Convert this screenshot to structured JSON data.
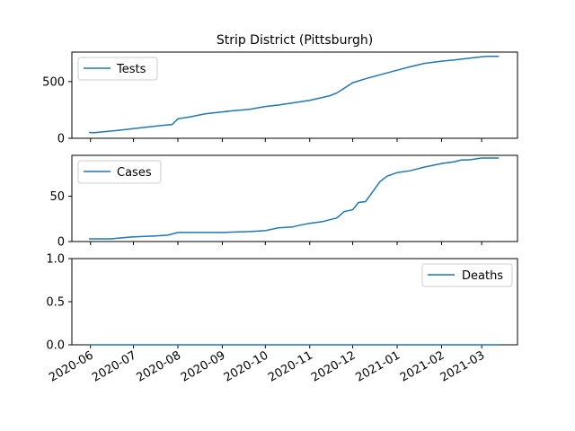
{
  "chart_data": {
    "type": "line",
    "title": "Strip District (Pittsburgh)",
    "color": "#1f77b4",
    "x_ticks": [
      "2020-06",
      "2020-07",
      "2020-08",
      "2020-09",
      "2020-10",
      "2020-11",
      "2020-12",
      "2021-01",
      "2021-02",
      "2021-03"
    ],
    "xlim": [
      "2020-05-19",
      "2021-03-26"
    ],
    "panels": [
      {
        "series": [
          {
            "name": "Tests",
            "x": [
              "2020-05-31",
              "2020-06-03",
              "2020-06-10",
              "2020-06-20",
              "2020-07-01",
              "2020-07-10",
              "2020-07-20",
              "2020-07-28",
              "2020-08-01",
              "2020-08-10",
              "2020-08-20",
              "2020-09-01",
              "2020-09-10",
              "2020-09-20",
              "2020-10-01",
              "2020-10-10",
              "2020-10-20",
              "2020-11-01",
              "2020-11-10",
              "2020-11-15",
              "2020-11-20",
              "2020-11-25",
              "2020-12-01",
              "2020-12-10",
              "2020-12-20",
              "2021-01-01",
              "2021-01-10",
              "2021-01-20",
              "2021-02-01",
              "2021-02-10",
              "2021-02-20",
              "2021-03-01",
              "2021-03-05",
              "2021-03-13"
            ],
            "y": [
              52,
              48,
              58,
              70,
              85,
              98,
              112,
              122,
              172,
              190,
              215,
              233,
              245,
              255,
              280,
              293,
              312,
              335,
              360,
              375,
              400,
              440,
              490,
              525,
              560,
              600,
              630,
              660,
              680,
              690,
              705,
              718,
              722,
              722
            ]
          }
        ],
        "ylim": [
          0,
          760
        ],
        "yticks": [
          0,
          500
        ],
        "legend_loc": "upper left"
      },
      {
        "series": [
          {
            "name": "Cases",
            "x": [
              "2020-05-31",
              "2020-06-15",
              "2020-06-30",
              "2020-07-15",
              "2020-07-25",
              "2020-08-01",
              "2020-08-20",
              "2020-09-01",
              "2020-09-20",
              "2020-10-01",
              "2020-10-10",
              "2020-10-20",
              "2020-10-25",
              "2020-11-01",
              "2020-11-10",
              "2020-11-15",
              "2020-11-20",
              "2020-11-25",
              "2020-12-01",
              "2020-12-05",
              "2020-12-10",
              "2020-12-15",
              "2020-12-20",
              "2020-12-25",
              "2021-01-01",
              "2021-01-10",
              "2021-01-20",
              "2021-02-01",
              "2021-02-10",
              "2021-02-15",
              "2021-02-20",
              "2021-03-01",
              "2021-03-13"
            ],
            "y": [
              3,
              3,
              5,
              6,
              7,
              10,
              10,
              10,
              11,
              12,
              15,
              16,
              18,
              20,
              22,
              24,
              26,
              33,
              35,
              43,
              44,
              55,
              66,
              72,
              76,
              78,
              82,
              86,
              88,
              90,
              90,
              92,
              92
            ]
          }
        ],
        "ylim": [
          0,
          95
        ],
        "yticks": [
          0,
          50
        ],
        "legend_loc": "upper left"
      },
      {
        "series": [
          {
            "name": "Deaths",
            "x": [
              "2020-05-31",
              "2021-03-13"
            ],
            "y": [
              0,
              0
            ]
          }
        ],
        "ylim": [
          0,
          1
        ],
        "yticks": [
          0.0,
          0.5,
          1.0
        ],
        "ytick_labels": [
          "0.0",
          "0.5",
          "1.0"
        ],
        "legend_loc": "upper right"
      }
    ]
  }
}
